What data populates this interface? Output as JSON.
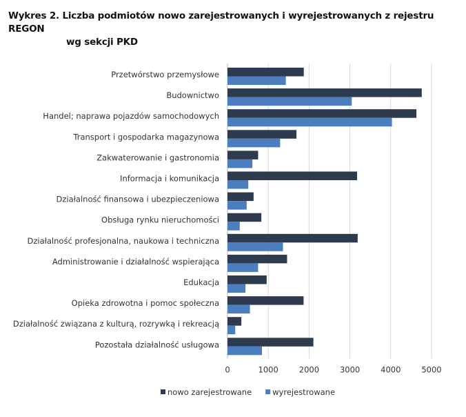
{
  "chart_data": {
    "type": "bar",
    "orientation": "horizontal",
    "title_line1": "Wykres 2. Liczba podmiotów nowo zarejestrowanych i wyrejestrowanych z rejestru REGON",
    "title_line2": "wg sekcji PKD",
    "categories": [
      "Przetwórstwo przemysłowe",
      "Budownictwo",
      "Handel; naprawa pojazdów samochodowych",
      "Transport i gospodarka magazynowa",
      "Zakwaterowanie i gastronomia",
      "Informacja i komunikacja",
      "Działalność finansowa i ubezpieczeniowa",
      "Obsługa rynku nieruchomości",
      "Działalność profesjonalna, naukowa i techniczna",
      "Administrowanie i działalność wspierająca",
      "Edukacja",
      "Opieka zdrowotna i pomoc społeczna",
      "Działalność związana z kulturą, rozrywką i rekreacją",
      "Pozostała działalność usługowa"
    ],
    "series": [
      {
        "name": "nowo zarejestrowane",
        "color": "#2e3a4d",
        "values": [
          1870,
          4760,
          4630,
          1690,
          750,
          3175,
          640,
          830,
          3190,
          1460,
          960,
          1865,
          340,
          2105
        ]
      },
      {
        "name": "wyrejestrowane",
        "color": "#4a7ebf",
        "values": [
          1430,
          3045,
          4030,
          1290,
          610,
          510,
          470,
          300,
          1360,
          750,
          440,
          550,
          190,
          845
        ]
      }
    ],
    "xlim": [
      0,
      5000
    ],
    "xticks": [
      "0",
      "1000",
      "2000",
      "3000",
      "4000",
      "5000"
    ],
    "grid": true,
    "legend": "bottom"
  }
}
